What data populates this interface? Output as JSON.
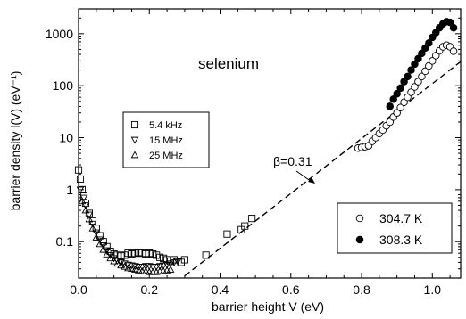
{
  "chart_data": {
    "type": "scatter",
    "title": "",
    "annotation": "selenium",
    "beta_annotation": "β=0.31",
    "xlabel": "barrier height V (eV)",
    "ylabel": "barrier density l(V)  (eV⁻¹)",
    "xlim": [
      0.0,
      1.08
    ],
    "ylim": [
      0.02,
      3000
    ],
    "yscale": "log",
    "x_ticks": [
      {
        "value": 0.0,
        "label": "0.0"
      },
      {
        "value": 0.2,
        "label": "0.2"
      },
      {
        "value": 0.4,
        "label": "0.4"
      },
      {
        "value": 0.6,
        "label": "0.6"
      },
      {
        "value": 0.8,
        "label": "0.8"
      },
      {
        "value": 1.0,
        "label": "1.0"
      }
    ],
    "y_ticks": [
      {
        "value": 0.1,
        "label": "0.1"
      },
      {
        "value": 1,
        "label": "1"
      },
      {
        "value": 10,
        "label": "10"
      },
      {
        "value": 100,
        "label": "100"
      },
      {
        "value": 1000,
        "label": "1000"
      }
    ],
    "legend_frequency": [
      {
        "label": "5.4 kHz",
        "marker": "square"
      },
      {
        "label": "15 MHz",
        "marker": "triangle-down"
      },
      {
        "label": "25 MHz",
        "marker": "triangle-up"
      }
    ],
    "legend_temperature": [
      {
        "label": "304.7 K",
        "marker": "circle-open"
      },
      {
        "label": "308.3 K",
        "marker": "circle-filled"
      }
    ],
    "fit_line": {
      "name": "β=0.31",
      "x": [
        0.3,
        1.08
      ],
      "y": [
        0.022,
        290
      ],
      "style": "dashed"
    },
    "series": [
      {
        "marker": "square",
        "x": [
          0.0,
          0.005,
          0.01,
          0.015,
          0.02,
          0.03,
          0.04,
          0.05,
          0.06,
          0.07,
          0.08,
          0.09,
          0.1,
          0.11,
          0.12,
          0.13,
          0.14,
          0.15,
          0.16,
          0.17,
          0.18,
          0.19,
          0.2,
          0.21,
          0.22,
          0.23,
          0.24,
          0.25,
          0.26,
          0.27,
          0.29,
          0.3,
          0.36,
          0.42,
          0.46,
          0.47,
          0.49
        ],
        "y": [
          2.4,
          1.6,
          1.0,
          0.75,
          0.55,
          0.35,
          0.25,
          0.18,
          0.13,
          0.1,
          0.08,
          0.065,
          0.058,
          0.055,
          0.053,
          0.055,
          0.06,
          0.058,
          0.06,
          0.062,
          0.06,
          0.058,
          0.06,
          0.058,
          0.055,
          0.05,
          0.048,
          0.045,
          0.042,
          0.045,
          0.04,
          0.045,
          0.055,
          0.14,
          0.17,
          0.2,
          0.28
        ]
      },
      {
        "marker": "triangle-down",
        "x": [
          0.005,
          0.015,
          0.02,
          0.03,
          0.04,
          0.05,
          0.06,
          0.07,
          0.08,
          0.09,
          0.1,
          0.11,
          0.12,
          0.13,
          0.14,
          0.15,
          0.16,
          0.17,
          0.18,
          0.19,
          0.2,
          0.21,
          0.22,
          0.23,
          0.24,
          0.25,
          0.26,
          0.27,
          0.28
        ],
        "y": [
          1.0,
          0.7,
          0.5,
          0.33,
          0.22,
          0.15,
          0.11,
          0.085,
          0.068,
          0.055,
          0.048,
          0.043,
          0.04,
          0.038,
          0.036,
          0.035,
          0.034,
          0.033,
          0.033,
          0.034,
          0.034,
          0.033,
          0.033,
          0.034,
          0.035,
          0.036,
          0.038,
          0.04,
          0.042
        ]
      },
      {
        "marker": "triangle-up",
        "x": [
          0.01,
          0.02,
          0.03,
          0.04,
          0.05,
          0.06,
          0.07,
          0.08,
          0.09,
          0.1,
          0.11,
          0.12,
          0.13,
          0.14,
          0.15,
          0.16,
          0.17,
          0.18,
          0.19,
          0.2,
          0.21,
          0.22,
          0.23,
          0.24,
          0.25,
          0.26
        ],
        "y": [
          0.6,
          0.4,
          0.27,
          0.18,
          0.12,
          0.09,
          0.07,
          0.057,
          0.048,
          0.042,
          0.038,
          0.035,
          0.033,
          0.031,
          0.03,
          0.029,
          0.028,
          0.027,
          0.027,
          0.026,
          0.026,
          0.026,
          0.027,
          0.027,
          0.028,
          0.029
        ]
      },
      {
        "name": "304.7 K",
        "marker": "circle-open",
        "x": [
          0.79,
          0.8,
          0.81,
          0.82,
          0.83,
          0.84,
          0.85,
          0.86,
          0.87,
          0.88,
          0.89,
          0.9,
          0.91,
          0.92,
          0.93,
          0.94,
          0.95,
          0.96,
          0.97,
          0.98,
          0.99,
          1.0,
          1.01,
          1.02,
          1.03,
          1.04,
          1.05,
          1.06
        ],
        "y": [
          6.3,
          6.5,
          6.7,
          7.0,
          8.5,
          10,
          12,
          14,
          17,
          20,
          25,
          30,
          38,
          48,
          60,
          75,
          95,
          120,
          150,
          190,
          240,
          300,
          380,
          470,
          560,
          600,
          560,
          460
        ]
      },
      {
        "name": "308.3 K",
        "marker": "circle-filled",
        "x": [
          0.88,
          0.89,
          0.9,
          0.91,
          0.92,
          0.93,
          0.94,
          0.95,
          0.96,
          0.97,
          0.98,
          0.99,
          1.0,
          1.01,
          1.02,
          1.03,
          1.04,
          1.05,
          1.06
        ],
        "y": [
          40,
          55,
          70,
          90,
          120,
          150,
          200,
          260,
          330,
          420,
          530,
          660,
          850,
          1050,
          1300,
          1550,
          1700,
          1650,
          1300
        ]
      }
    ],
    "grid": false,
    "legend_placement": "center-left and bottom-right"
  }
}
